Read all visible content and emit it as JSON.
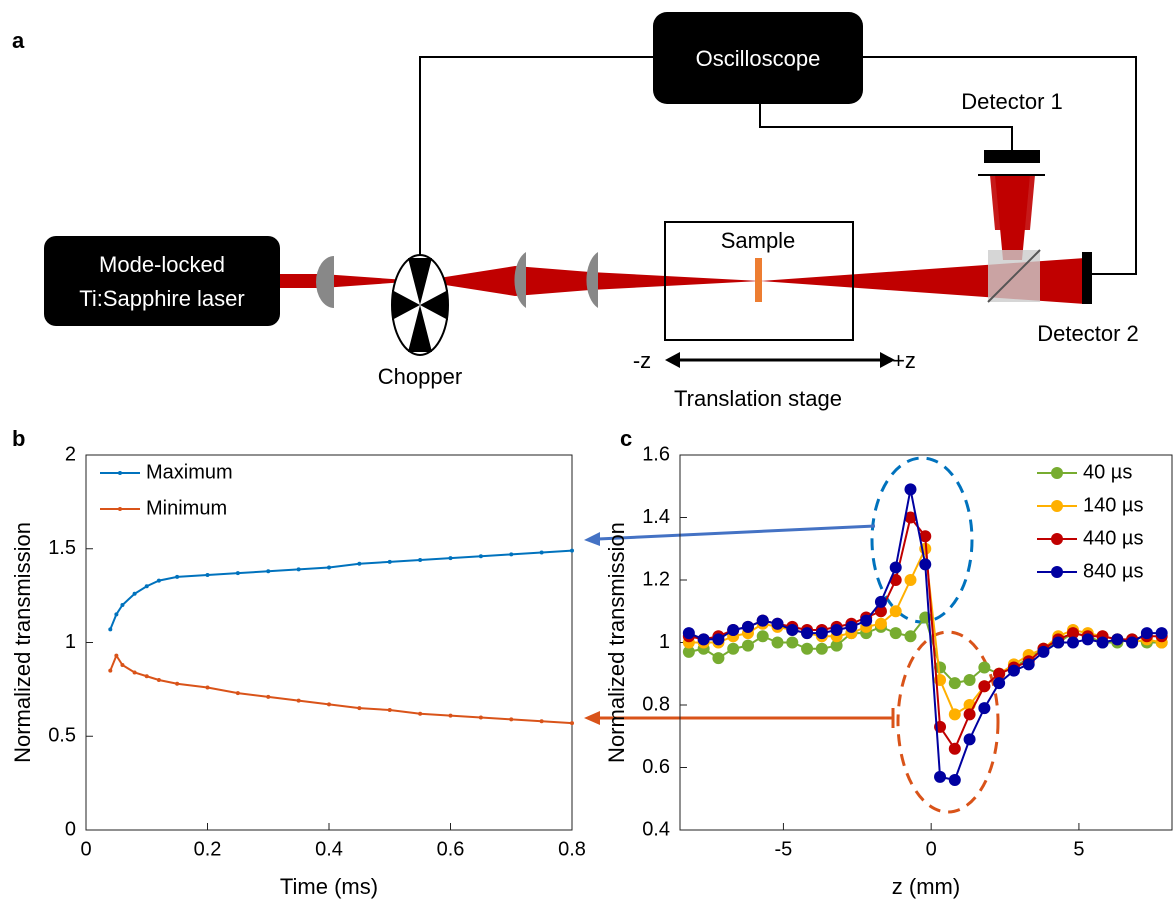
{
  "panel_labels": [
    "a",
    "b",
    "c"
  ],
  "diagram": {
    "laser": [
      "Mode-locked",
      "Ti:Sapphire laser"
    ],
    "oscilloscope": "Oscilloscope",
    "detector_1": "Detector 1",
    "detector_2": "Detector 2",
    "sample": "Sample",
    "chopper": "Chopper",
    "minus_z": "-z",
    "plus_z": "+z",
    "stage": "Translation stage"
  },
  "chart_data": [
    {
      "type": "line",
      "x_label": "Time (ms)",
      "y_label": "Normalized transmission",
      "x": [
        0.04,
        0.05,
        0.06,
        0.08,
        0.1,
        0.12,
        0.15,
        0.2,
        0.25,
        0.3,
        0.35,
        0.4,
        0.45,
        0.5,
        0.55,
        0.6,
        0.65,
        0.7,
        0.75,
        0.8
      ],
      "series": [
        {
          "name": "Maximum",
          "color": "#0072bd",
          "values": [
            1.07,
            1.15,
            1.2,
            1.26,
            1.3,
            1.33,
            1.35,
            1.36,
            1.37,
            1.38,
            1.39,
            1.4,
            1.42,
            1.43,
            1.44,
            1.45,
            1.46,
            1.47,
            1.48,
            1.49
          ]
        },
        {
          "name": "Minimum",
          "color": "#d95319",
          "values": [
            0.85,
            0.93,
            0.88,
            0.84,
            0.82,
            0.8,
            0.78,
            0.76,
            0.73,
            0.71,
            0.69,
            0.67,
            0.65,
            0.64,
            0.62,
            0.61,
            0.6,
            0.59,
            0.58,
            0.57
          ]
        }
      ],
      "xlim": [
        0,
        0.8
      ],
      "xticks": [
        0,
        0.2,
        0.4,
        0.6,
        0.8
      ],
      "ylim": [
        0,
        2
      ],
      "yticks": [
        0,
        0.5,
        1,
        1.5,
        2
      ],
      "legend": "upper left"
    },
    {
      "type": "line",
      "x_label": "z (mm)",
      "y_label": "Normalized transmission",
      "x": [
        -8.2,
        -7.7,
        -7.2,
        -6.7,
        -6.2,
        -5.7,
        -5.2,
        -4.7,
        -4.2,
        -3.7,
        -3.2,
        -2.7,
        -2.2,
        -1.7,
        -1.2,
        -0.7,
        -0.2,
        0.3,
        0.8,
        1.3,
        1.8,
        2.3,
        2.8,
        3.3,
        3.8,
        4.3,
        4.8,
        5.3,
        5.8,
        6.3,
        6.8,
        7.3,
        7.8
      ],
      "series": [
        {
          "name": "40 µs",
          "color": "#77ac30",
          "values": [
            0.97,
            0.98,
            0.95,
            0.98,
            0.99,
            1.02,
            1.0,
            1.0,
            0.98,
            0.98,
            0.99,
            1.03,
            1.03,
            1.05,
            1.03,
            1.02,
            1.08,
            0.92,
            0.87,
            0.88,
            0.92,
            0.9,
            0.92,
            0.95,
            0.98,
            1.0,
            1.03,
            1.02,
            1.0,
            1.0,
            1.01,
            1.0,
            1.0
          ]
        },
        {
          "name": "140 µs",
          "color": "#ffb000",
          "values": [
            1.0,
            1.0,
            1.0,
            1.02,
            1.03,
            1.06,
            1.05,
            1.04,
            1.03,
            1.02,
            1.02,
            1.03,
            1.05,
            1.06,
            1.1,
            1.2,
            1.3,
            0.88,
            0.77,
            0.8,
            0.86,
            0.9,
            0.93,
            0.96,
            0.98,
            1.02,
            1.04,
            1.03,
            1.02,
            1.01,
            1.0,
            1.01,
            1.0
          ]
        },
        {
          "name": "440 µs",
          "color": "#c00000",
          "values": [
            1.02,
            1.01,
            1.02,
            1.04,
            1.05,
            1.07,
            1.06,
            1.05,
            1.04,
            1.04,
            1.05,
            1.06,
            1.08,
            1.1,
            1.2,
            1.4,
            1.34,
            0.73,
            0.66,
            0.77,
            0.86,
            0.9,
            0.92,
            0.94,
            0.98,
            1.01,
            1.03,
            1.02,
            1.02,
            1.01,
            1.01,
            1.02,
            1.02
          ]
        },
        {
          "name": "840 µs",
          "color": "#0000a0",
          "values": [
            1.03,
            1.01,
            1.01,
            1.04,
            1.05,
            1.07,
            1.06,
            1.04,
            1.03,
            1.03,
            1.04,
            1.05,
            1.07,
            1.13,
            1.24,
            1.49,
            1.25,
            0.57,
            0.56,
            0.69,
            0.79,
            0.87,
            0.91,
            0.93,
            0.97,
            1.0,
            1.0,
            1.01,
            1.0,
            1.01,
            1.0,
            1.03,
            1.03
          ]
        }
      ],
      "xlim": [
        -8.5,
        8.15
      ],
      "xticks": [
        -5,
        0,
        5
      ],
      "ylim": [
        0.4,
        1.6
      ],
      "yticks": [
        0.4,
        0.6,
        0.8,
        1,
        1.2,
        1.4,
        1.6
      ],
      "legend": "upper right"
    }
  ]
}
